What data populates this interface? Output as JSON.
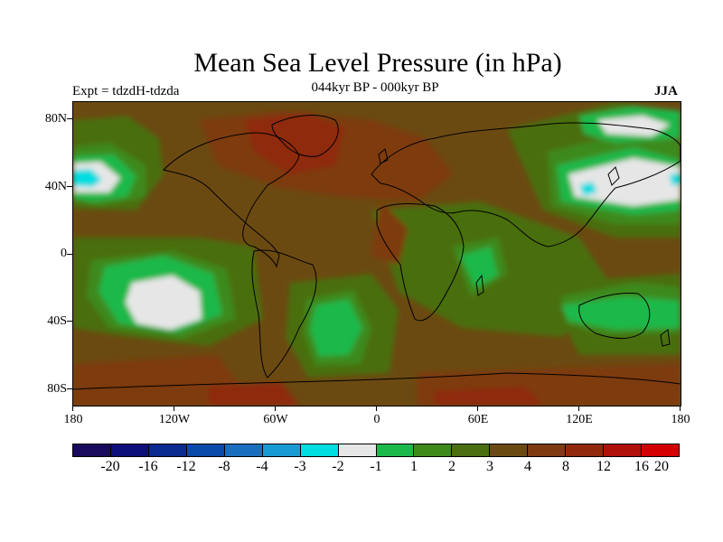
{
  "title": "Mean Sea Level Pressure (in hPa)",
  "subtitle": "044kyr BP - 000kyr BP",
  "left_label": "Expt = tdzdH-tdzda",
  "right_label": "JJA",
  "lat_labels": [
    "80N",
    "40N",
    "0",
    "40S",
    "80S"
  ],
  "lon_labels": [
    "180",
    "120W",
    "60W",
    "0",
    "60E",
    "120E",
    "180"
  ],
  "colorbar": {
    "colors": [
      "#1a0a5e",
      "#0d0f7a",
      "#0a2a8f",
      "#0a4aa8",
      "#1a6ec0",
      "#1a9ad4",
      "#00dde0",
      "#e6e6e6",
      "#1db84a",
      "#3e8a1a",
      "#4a6e10",
      "#6b4a12",
      "#7e3a10",
      "#8f2a0e",
      "#b0100a",
      "#d40000"
    ],
    "labels": [
      "-20",
      "-16",
      "-12",
      "-8",
      "-4",
      "-3",
      "-2",
      "-1",
      "1",
      "2",
      "3",
      "4",
      "8",
      "12",
      "16",
      "20"
    ]
  },
  "legend_colors": {
    "brown": "#6b4a12",
    "dark_olive": "#4a6e10",
    "green": "#3e8a1a",
    "bright_green": "#1db84a",
    "near_zero": "#e6e6e6",
    "cyan": "#00dde0",
    "rust": "#7e3a10",
    "dark_red": "#8f2a0e"
  }
}
